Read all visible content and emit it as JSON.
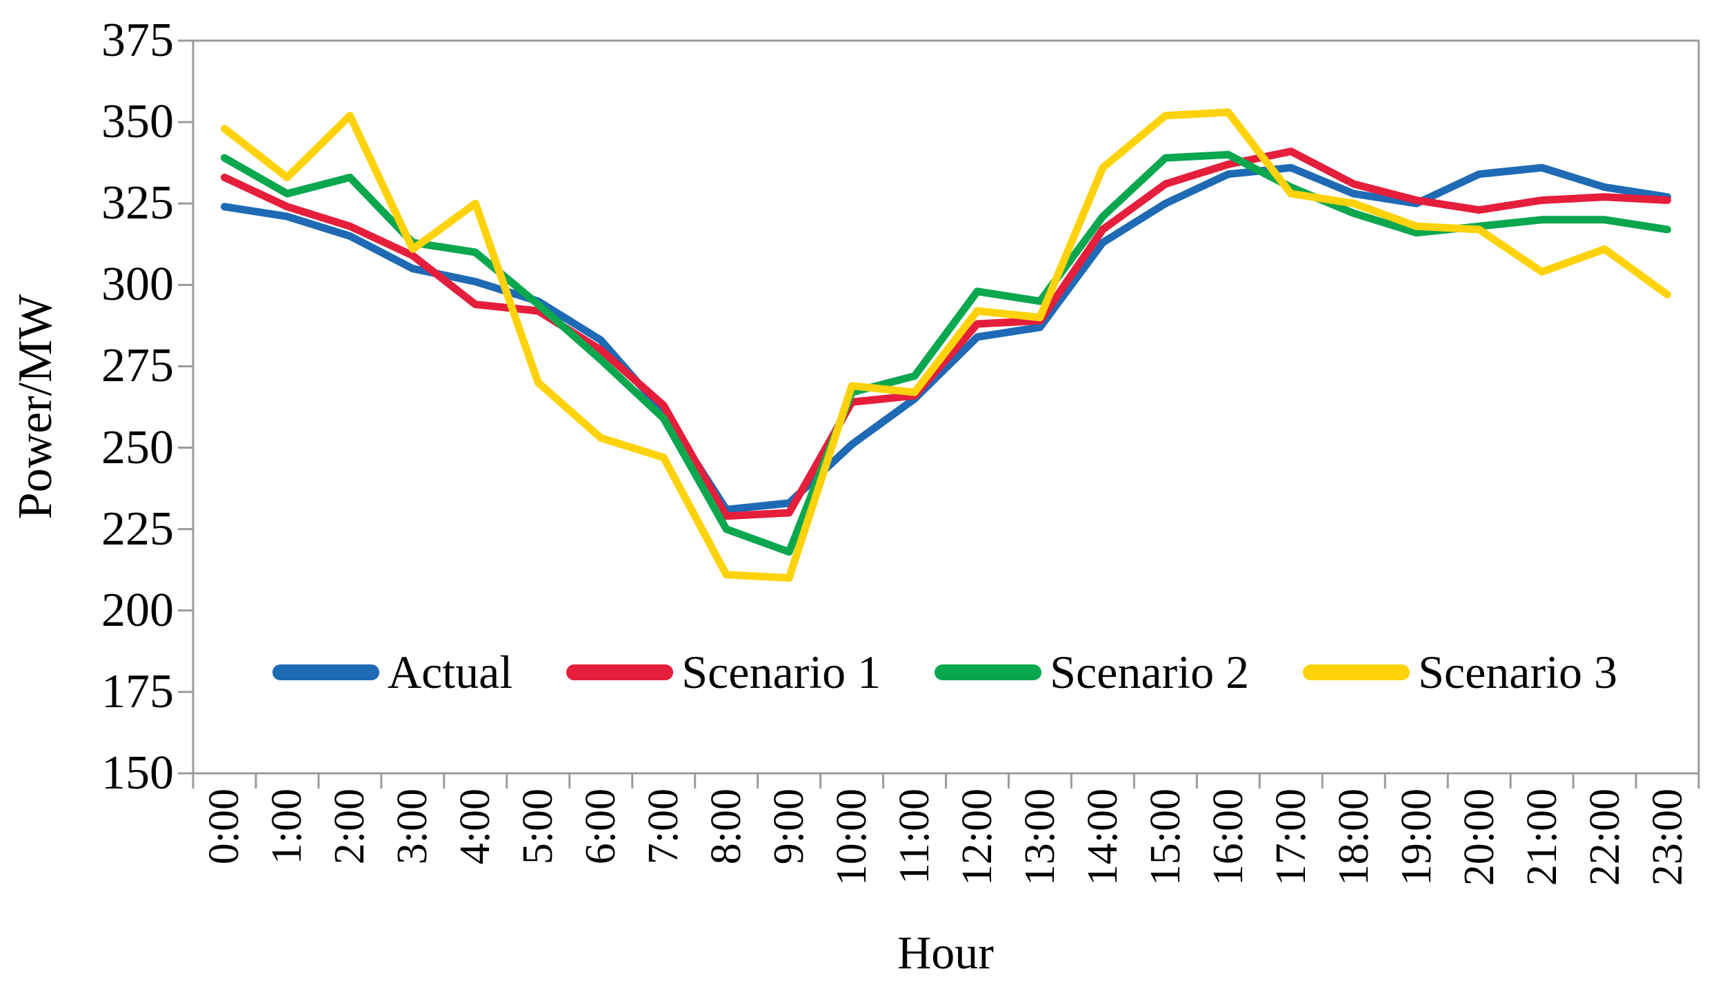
{
  "chart_data": {
    "type": "line",
    "title": "",
    "xlabel": "Hour",
    "ylabel": "Power/MW",
    "ylim": [
      150,
      375
    ],
    "yticks": [
      150,
      175,
      200,
      225,
      250,
      275,
      300,
      325,
      350,
      375
    ],
    "grid": false,
    "legend_position": "inside-bottom",
    "categories": [
      "0:00",
      "1:00",
      "2:00",
      "3:00",
      "4:00",
      "5:00",
      "6:00",
      "7:00",
      "8:00",
      "9:00",
      "10:00",
      "11:00",
      "12:00",
      "13:00",
      "14:00",
      "15:00",
      "16:00",
      "17:00",
      "18:00",
      "19:00",
      "20:00",
      "21:00",
      "22:00",
      "23:00"
    ],
    "series": [
      {
        "name": "Actual",
        "color": "#1E6AB4",
        "values": [
          324,
          321,
          315,
          305,
          301,
          295,
          283,
          261,
          231,
          233,
          251,
          265,
          284,
          287,
          313,
          325,
          334,
          336,
          328,
          325,
          334,
          336,
          330,
          327
        ]
      },
      {
        "name": "Scenario 1",
        "color": "#E51E3C",
        "values": [
          333,
          324,
          318,
          309,
          294,
          292,
          280,
          263,
          229,
          230,
          264,
          266,
          288,
          289,
          317,
          331,
          337,
          341,
          331,
          326,
          323,
          326,
          327,
          326
        ]
      },
      {
        "name": "Scenario 2",
        "color": "#0AA74F",
        "values": [
          339,
          328,
          333,
          313,
          310,
          294,
          277,
          259,
          225,
          218,
          267,
          272,
          298,
          295,
          321,
          339,
          340,
          330,
          322,
          316,
          318,
          320,
          320,
          317
        ]
      },
      {
        "name": "Scenario 3",
        "color": "#FFD20A",
        "values": [
          348,
          333,
          352,
          311,
          325,
          270,
          253,
          247,
          211,
          210,
          269,
          267,
          292,
          290,
          336,
          352,
          353,
          328,
          325,
          318,
          317,
          304,
          311,
          297
        ]
      }
    ],
    "frame_color": "#9B9B9B",
    "text_color": "#000000"
  }
}
